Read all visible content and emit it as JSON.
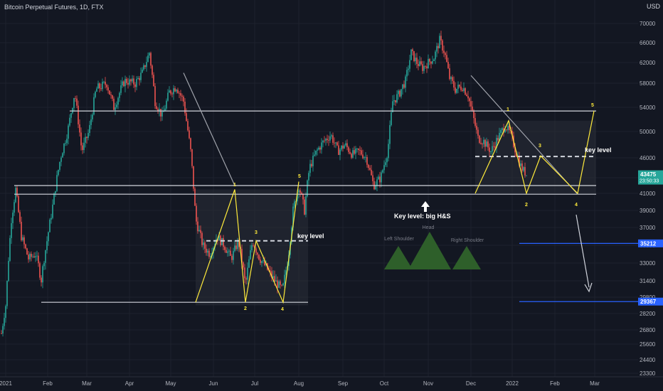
{
  "chart_title": "Bitcoin Perpetual Futures, 1D, FTX",
  "currency": "USD",
  "chart_data": {
    "type": "candlestick",
    "y_ticks": [
      70000,
      66000,
      62000,
      58000,
      54000,
      50000,
      46000,
      43000,
      41000,
      39000,
      37000,
      35000,
      33000,
      31400,
      29800,
      28200,
      26800,
      25600,
      24400,
      23300
    ],
    "ylim": [
      23000,
      74000
    ],
    "x_ticks": [
      "2021",
      "Feb",
      "Mar",
      "Apr",
      "May",
      "Jun",
      "Jul",
      "Aug",
      "Sep",
      "Oct",
      "Nov",
      "Dec",
      "2022",
      "Feb",
      "Mar"
    ],
    "price_badges": [
      {
        "label": "43475",
        "sub": "23:50:33",
        "value": 43475,
        "color": "#26a69a"
      },
      {
        "label": "35212",
        "value": 35212,
        "color": "#2962ff"
      },
      {
        "label": "29367",
        "value": 29367,
        "color": "#2962ff"
      }
    ],
    "colors": {
      "up": "#26a69a",
      "down": "#ef5350",
      "pattern": "#ffeb3b",
      "lines": "#d1d4dc",
      "blue": "#2962ff",
      "hs": "#2e5f2a"
    },
    "annotations": {
      "key_level_left": "key level",
      "key_level_right": "key level",
      "key_level_hs": "Key level:  big H&S",
      "head": "Head",
      "left_shoulder": "Left Shoulder",
      "right_shoulder": "Right Shoulder",
      "wave_labels": [
        "1",
        "2",
        "3",
        "4",
        "5"
      ]
    }
  }
}
